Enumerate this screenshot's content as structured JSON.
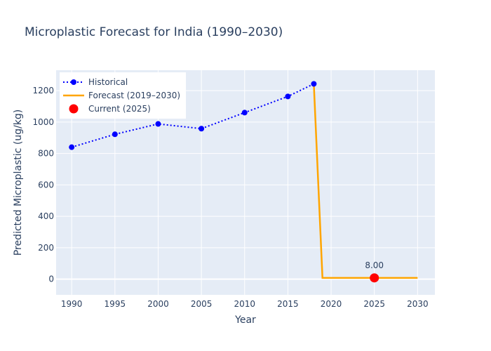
{
  "chart_data": {
    "type": "line",
    "title": "Microplastic Forecast for India (1990–2030)",
    "xlabel": "Year",
    "ylabel": "Predicted Microplastic (ug/kg)",
    "xlim": [
      1988.2,
      2032.0
    ],
    "ylim": [
      -100,
      1330
    ],
    "x_ticks": [
      1990,
      1995,
      2000,
      2005,
      2010,
      2015,
      2020,
      2025,
      2030
    ],
    "y_ticks": [
      0,
      200,
      400,
      600,
      800,
      1000,
      1200
    ],
    "grid": true,
    "legend_position": "top-left",
    "series": [
      {
        "name": "Historical",
        "style": "dotted-line-markers",
        "color": "#0000ff",
        "x": [
          1990,
          1995,
          2000,
          2005,
          2010,
          2015,
          2018
        ],
        "y": [
          840,
          922,
          988,
          958,
          1060,
          1163,
          1243
        ]
      },
      {
        "name": "Forecast (2019–2030)",
        "style": "solid-line",
        "color": "#ffa500",
        "x": [
          2018,
          2019,
          2020,
          2021,
          2022,
          2023,
          2024,
          2025,
          2026,
          2027,
          2028,
          2029,
          2030
        ],
        "y": [
          1243,
          8,
          8,
          8,
          8,
          8,
          8,
          8,
          8,
          8,
          8,
          8,
          8
        ]
      },
      {
        "name": "Current (2025)",
        "style": "marker",
        "color": "#ff0000",
        "x": [
          2025
        ],
        "y": [
          8
        ],
        "label": "8.00"
      }
    ]
  }
}
